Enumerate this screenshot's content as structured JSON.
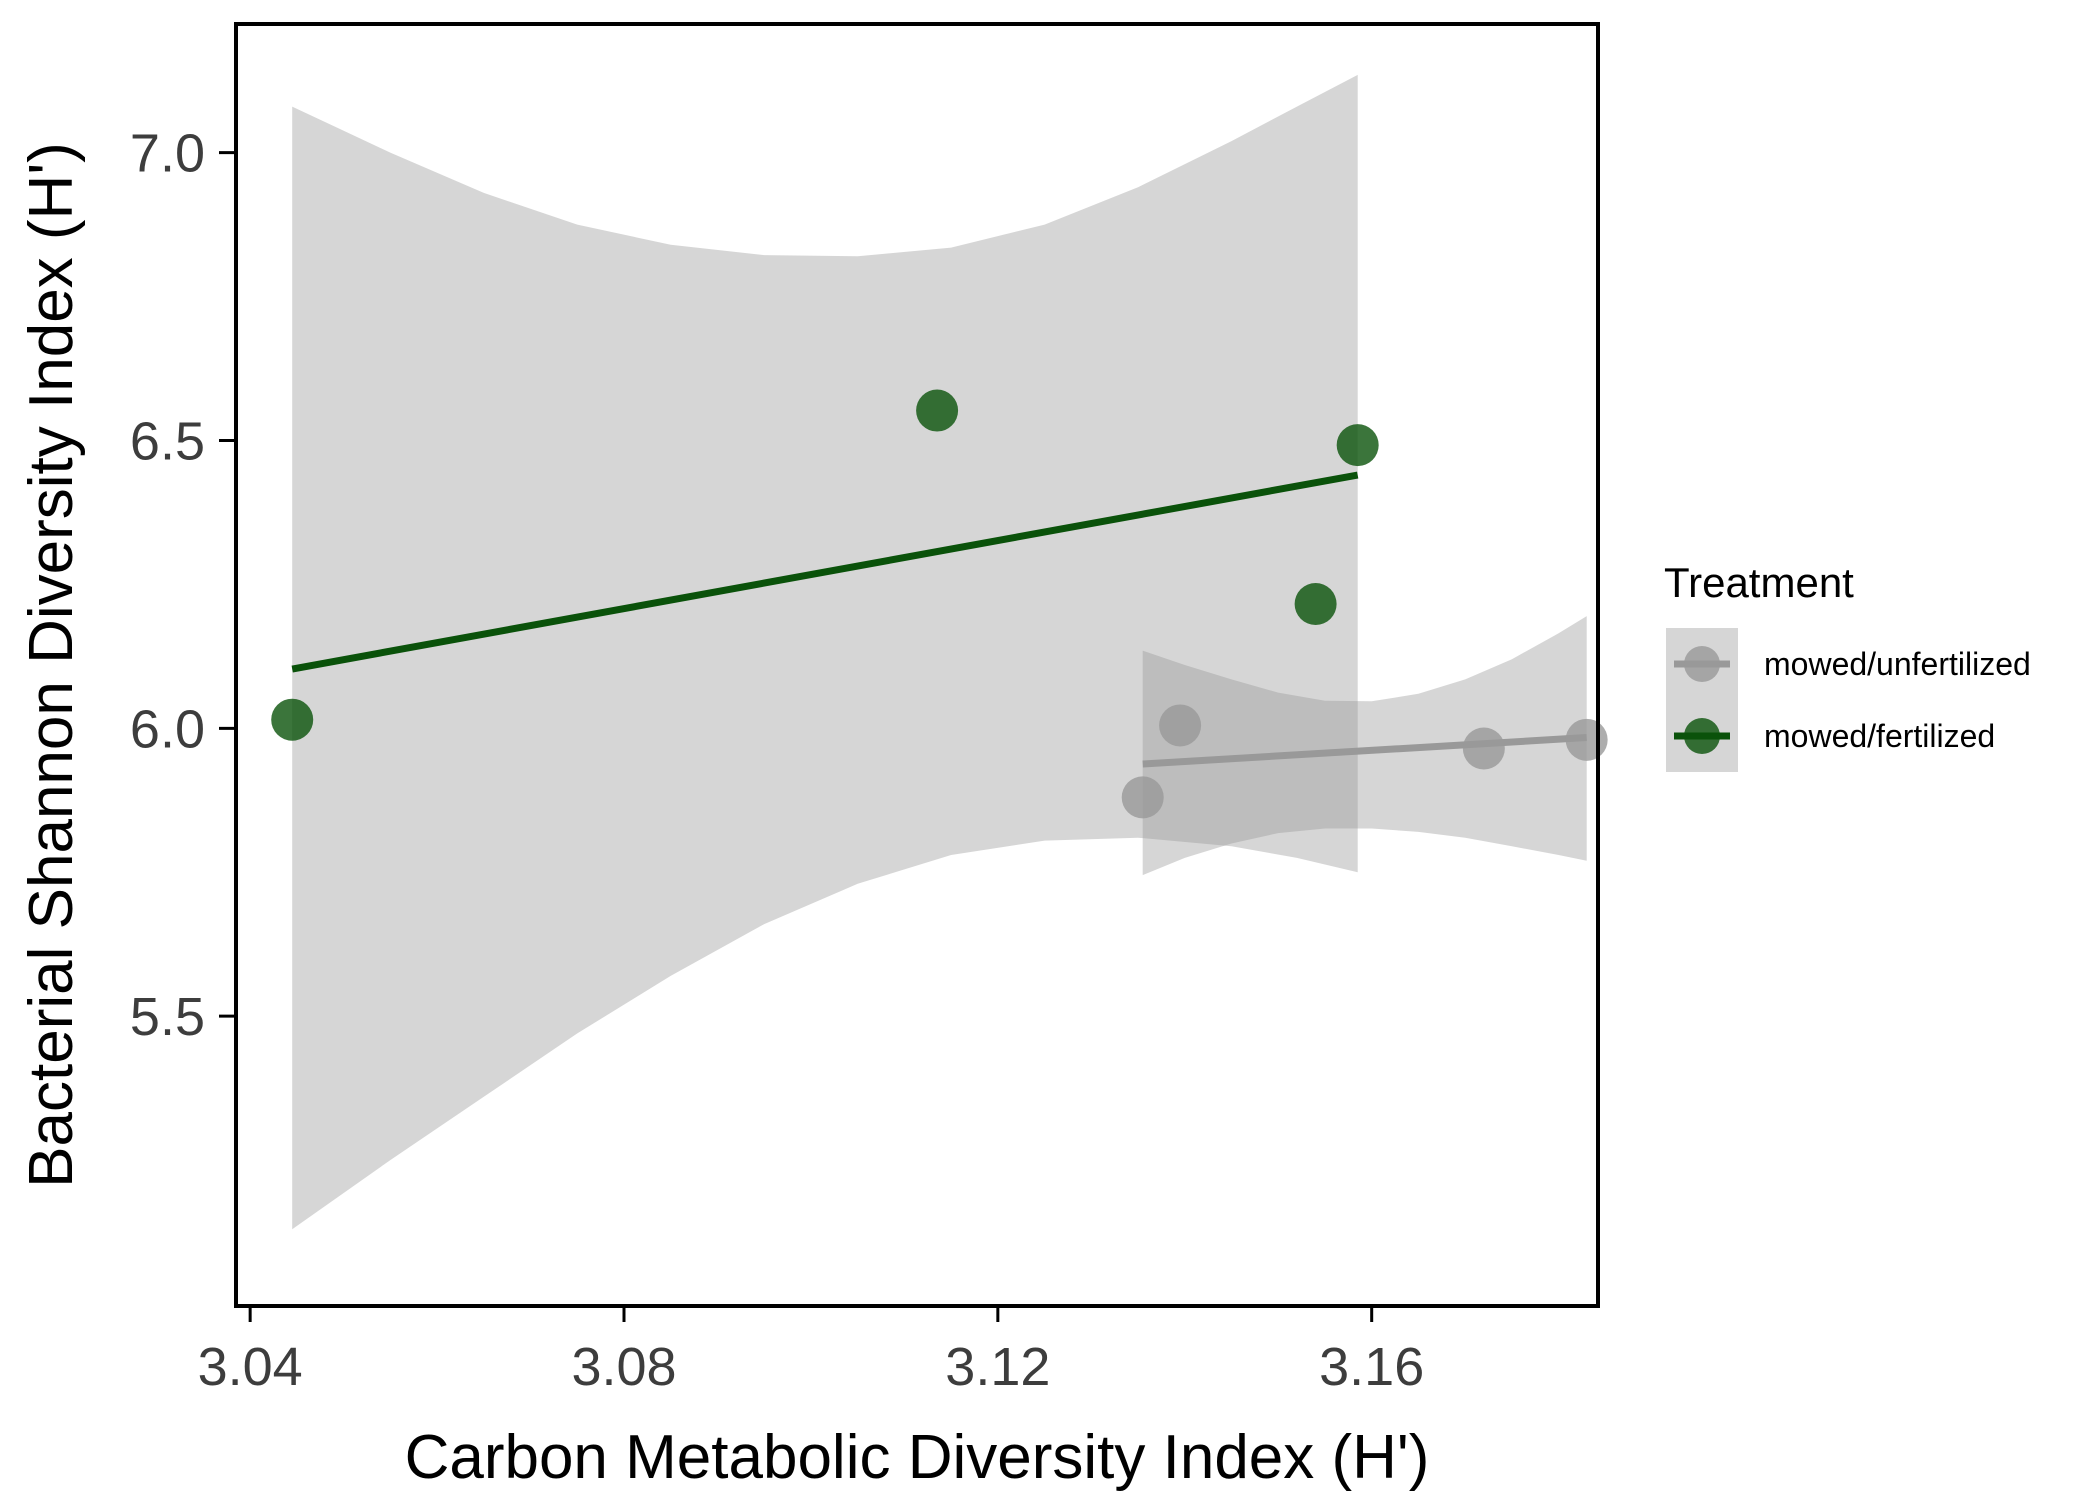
{
  "chart_data": {
    "type": "scatter",
    "xlabel": "Carbon Metabolic Diversity Index (H')",
    "ylabel": "Bacterial Shannon Diversity Index (H')",
    "xlim": [
      3.0387,
      3.184
    ],
    "ylim": [
      5.0,
      7.22
    ],
    "x_ticks": [
      {
        "value": 3.04,
        "label": "3.04"
      },
      {
        "value": 3.08,
        "label": "3.08"
      },
      {
        "value": 3.12,
        "label": "3.12"
      },
      {
        "value": 3.16,
        "label": "3.16"
      }
    ],
    "y_ticks": [
      {
        "value": 5.5,
        "label": "5.5"
      },
      {
        "value": 6.0,
        "label": "6.0"
      },
      {
        "value": 6.5,
        "label": "6.5"
      },
      {
        "value": 7.0,
        "label": "7.0"
      }
    ],
    "grid": false,
    "legend": {
      "title": "Treatment",
      "placement": "right"
    },
    "series": [
      {
        "name": "mowed/unfertilized",
        "color": "#999999",
        "points": [
          {
            "x": 3.1355,
            "y": 5.88
          },
          {
            "x": 3.1395,
            "y": 6.005
          },
          {
            "x": 3.172,
            "y": 5.965
          },
          {
            "x": 3.183,
            "y": 5.98
          }
        ],
        "fit": [
          [
            3.1355,
            5.938
          ],
          [
            3.183,
            5.984
          ]
        ],
        "ribbon": [
          {
            "x": 3.1355,
            "upper": 6.135,
            "lower": 5.745
          },
          {
            "x": 3.14,
            "upper": 6.11,
            "lower": 5.775
          },
          {
            "x": 3.145,
            "upper": 6.085,
            "lower": 5.8
          },
          {
            "x": 3.15,
            "upper": 6.062,
            "lower": 5.818
          },
          {
            "x": 3.155,
            "upper": 6.048,
            "lower": 5.826
          },
          {
            "x": 3.16,
            "upper": 6.047,
            "lower": 5.826
          },
          {
            "x": 3.165,
            "upper": 6.06,
            "lower": 5.82
          },
          {
            "x": 3.17,
            "upper": 6.085,
            "lower": 5.81
          },
          {
            "x": 3.175,
            "upper": 6.12,
            "lower": 5.795
          },
          {
            "x": 3.18,
            "upper": 6.165,
            "lower": 5.78
          },
          {
            "x": 3.183,
            "upper": 6.195,
            "lower": 5.77
          }
        ]
      },
      {
        "name": "mowed/fertilized",
        "color": "#0a520a",
        "points": [
          {
            "x": 3.0445,
            "y": 6.015
          },
          {
            "x": 3.1135,
            "y": 6.552
          },
          {
            "x": 3.154,
            "y": 6.216
          },
          {
            "x": 3.1585,
            "y": 6.492
          }
        ],
        "fit": [
          [
            3.0445,
            6.103
          ],
          [
            3.1585,
            6.44
          ]
        ],
        "ribbon": [
          {
            "x": 3.0445,
            "upper": 7.08,
            "lower": 5.13
          },
          {
            "x": 3.055,
            "upper": 7.0,
            "lower": 5.25
          },
          {
            "x": 3.065,
            "upper": 6.93,
            "lower": 5.36
          },
          {
            "x": 3.075,
            "upper": 6.875,
            "lower": 5.47
          },
          {
            "x": 3.085,
            "upper": 6.84,
            "lower": 5.57
          },
          {
            "x": 3.095,
            "upper": 6.822,
            "lower": 5.66
          },
          {
            "x": 3.105,
            "upper": 6.82,
            "lower": 5.73
          },
          {
            "x": 3.115,
            "upper": 6.835,
            "lower": 5.78
          },
          {
            "x": 3.125,
            "upper": 6.875,
            "lower": 5.805
          },
          {
            "x": 3.135,
            "upper": 6.94,
            "lower": 5.81
          },
          {
            "x": 3.145,
            "upper": 7.02,
            "lower": 5.795
          },
          {
            "x": 3.152,
            "upper": 7.08,
            "lower": 5.775
          },
          {
            "x": 3.1585,
            "upper": 7.135,
            "lower": 5.75
          }
        ]
      }
    ]
  }
}
